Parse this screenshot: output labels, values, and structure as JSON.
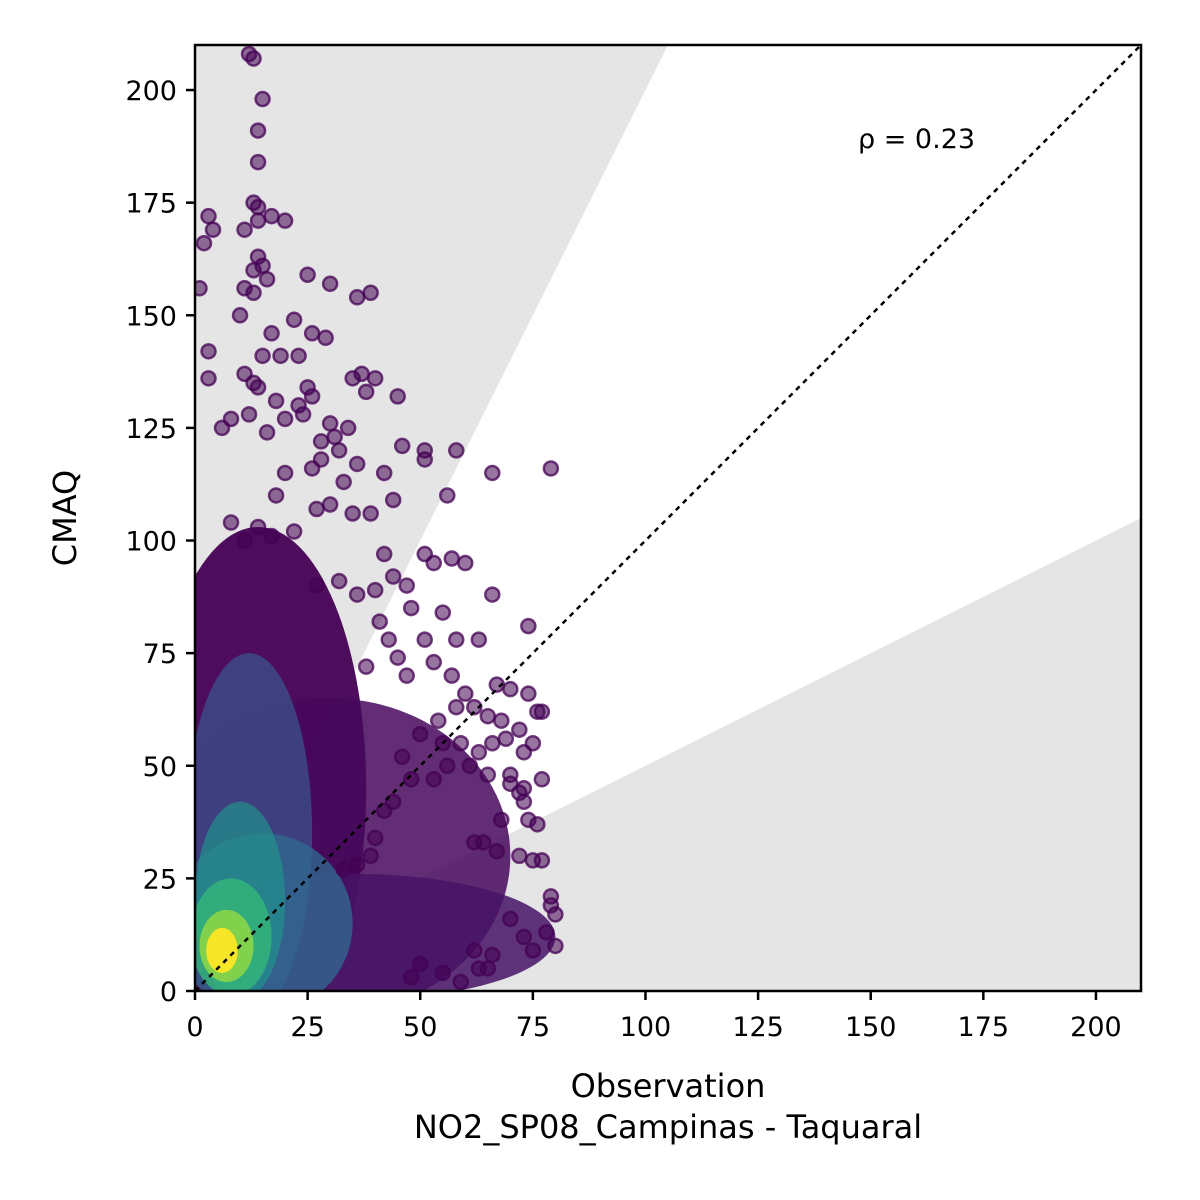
{
  "chart_data": {
    "type": "scatter",
    "xlabel": "Observation",
    "xlabel_line2": "NO2_SP08_Campinas - Taquaral",
    "ylabel": "CMAQ",
    "xlim": [
      0,
      210
    ],
    "ylim": [
      0,
      210
    ],
    "xticks": [
      0,
      25,
      50,
      75,
      100,
      125,
      150,
      175,
      200
    ],
    "yticks": [
      0,
      25,
      50,
      75,
      100,
      125,
      150,
      175,
      200
    ],
    "annotation": "ρ = 0.23",
    "identity_line": true,
    "shaded_regions": "outside factor-of-two band (y > 2x and y < x/2)",
    "colormap": "viridis (point density)",
    "outlier_points": [
      [
        12,
        208
      ],
      [
        13,
        207
      ],
      [
        15,
        198
      ],
      [
        14,
        191
      ],
      [
        14,
        184
      ],
      [
        13,
        175
      ],
      [
        14,
        174
      ],
      [
        14,
        171
      ],
      [
        20,
        171
      ],
      [
        17,
        172
      ],
      [
        3,
        172
      ],
      [
        4,
        169
      ],
      [
        11,
        169
      ],
      [
        2,
        166
      ],
      [
        14,
        163
      ],
      [
        15,
        161
      ],
      [
        13,
        160
      ],
      [
        16,
        158
      ],
      [
        25,
        159
      ],
      [
        30,
        157
      ],
      [
        1,
        156
      ],
      [
        11,
        156
      ],
      [
        13,
        155
      ],
      [
        36,
        154
      ],
      [
        39,
        155
      ],
      [
        22,
        149
      ],
      [
        10,
        150
      ],
      [
        17,
        146
      ],
      [
        26,
        146
      ],
      [
        3,
        142
      ],
      [
        15,
        141
      ],
      [
        19,
        141
      ],
      [
        23,
        141
      ],
      [
        29,
        145
      ],
      [
        13,
        135
      ],
      [
        3,
        136
      ],
      [
        11,
        137
      ],
      [
        14,
        134
      ],
      [
        25,
        134
      ],
      [
        26,
        132
      ],
      [
        35,
        136
      ],
      [
        37,
        137
      ],
      [
        40,
        136
      ],
      [
        38,
        133
      ],
      [
        45,
        132
      ],
      [
        23,
        130
      ],
      [
        18,
        131
      ],
      [
        24,
        128
      ],
      [
        8,
        127
      ],
      [
        12,
        128
      ],
      [
        20,
        127
      ],
      [
        30,
        126
      ],
      [
        34,
        125
      ],
      [
        6,
        125
      ],
      [
        16,
        124
      ],
      [
        28,
        122
      ],
      [
        31,
        123
      ],
      [
        32,
        120
      ],
      [
        28,
        118
      ],
      [
        26,
        116
      ],
      [
        36,
        117
      ],
      [
        46,
        121
      ],
      [
        51,
        120
      ],
      [
        51,
        118
      ],
      [
        58,
        120
      ],
      [
        42,
        115
      ],
      [
        66,
        115
      ],
      [
        79,
        116
      ],
      [
        20,
        115
      ],
      [
        33,
        113
      ],
      [
        44,
        109
      ],
      [
        56,
        110
      ],
      [
        18,
        110
      ],
      [
        27,
        107
      ],
      [
        30,
        108
      ],
      [
        35,
        106
      ],
      [
        39,
        106
      ],
      [
        8,
        104
      ],
      [
        14,
        103
      ],
      [
        22,
        102
      ],
      [
        17,
        101
      ],
      [
        11,
        100
      ],
      [
        42,
        97
      ],
      [
        51,
        97
      ],
      [
        53,
        95
      ],
      [
        57,
        96
      ],
      [
        60,
        95
      ],
      [
        44,
        92
      ],
      [
        47,
        90
      ],
      [
        40,
        89
      ],
      [
        48,
        85
      ],
      [
        55,
        84
      ],
      [
        66,
        88
      ],
      [
        32,
        91
      ],
      [
        27,
        90
      ],
      [
        36,
        88
      ],
      [
        41,
        82
      ],
      [
        43,
        78
      ],
      [
        51,
        78
      ],
      [
        58,
        78
      ],
      [
        63,
        78
      ],
      [
        74,
        81
      ],
      [
        38,
        72
      ],
      [
        45,
        74
      ],
      [
        47,
        70
      ],
      [
        53,
        73
      ],
      [
        57,
        70
      ],
      [
        60,
        66
      ],
      [
        65,
        61
      ],
      [
        67,
        68
      ],
      [
        70,
        67
      ],
      [
        74,
        66
      ],
      [
        62,
        63
      ],
      [
        54,
        60
      ],
      [
        58,
        63
      ],
      [
        68,
        60
      ],
      [
        72,
        58
      ],
      [
        76,
        62
      ],
      [
        77,
        62
      ],
      [
        50,
        57
      ],
      [
        55,
        55
      ],
      [
        59,
        55
      ],
      [
        63,
        53
      ],
      [
        66,
        55
      ],
      [
        69,
        56
      ],
      [
        73,
        53
      ],
      [
        75,
        55
      ],
      [
        46,
        52
      ],
      [
        48,
        47
      ],
      [
        53,
        47
      ],
      [
        56,
        50
      ],
      [
        61,
        50
      ],
      [
        65,
        48
      ],
      [
        70,
        46
      ],
      [
        72,
        44
      ],
      [
        77,
        47
      ],
      [
        70,
        48
      ],
      [
        73,
        45
      ],
      [
        73,
        42
      ],
      [
        68,
        38
      ],
      [
        74,
        38
      ],
      [
        76,
        37
      ],
      [
        62,
        33
      ],
      [
        64,
        33
      ],
      [
        67,
        31
      ],
      [
        72,
        30
      ],
      [
        75,
        29
      ],
      [
        77,
        29
      ],
      [
        79,
        21
      ],
      [
        79,
        19
      ],
      [
        80,
        17
      ],
      [
        78,
        13
      ],
      [
        80,
        10
      ],
      [
        70,
        16
      ],
      [
        73,
        12
      ],
      [
        75,
        9
      ],
      [
        66,
        8
      ],
      [
        63,
        5
      ],
      [
        65,
        5
      ],
      [
        59,
        2
      ],
      [
        48,
        3
      ],
      [
        55,
        4
      ],
      [
        50,
        6
      ],
      [
        62,
        9
      ],
      [
        40,
        34
      ],
      [
        42,
        40
      ],
      [
        44,
        42
      ],
      [
        39,
        30
      ],
      [
        36,
        28
      ],
      [
        33,
        27
      ]
    ]
  }
}
